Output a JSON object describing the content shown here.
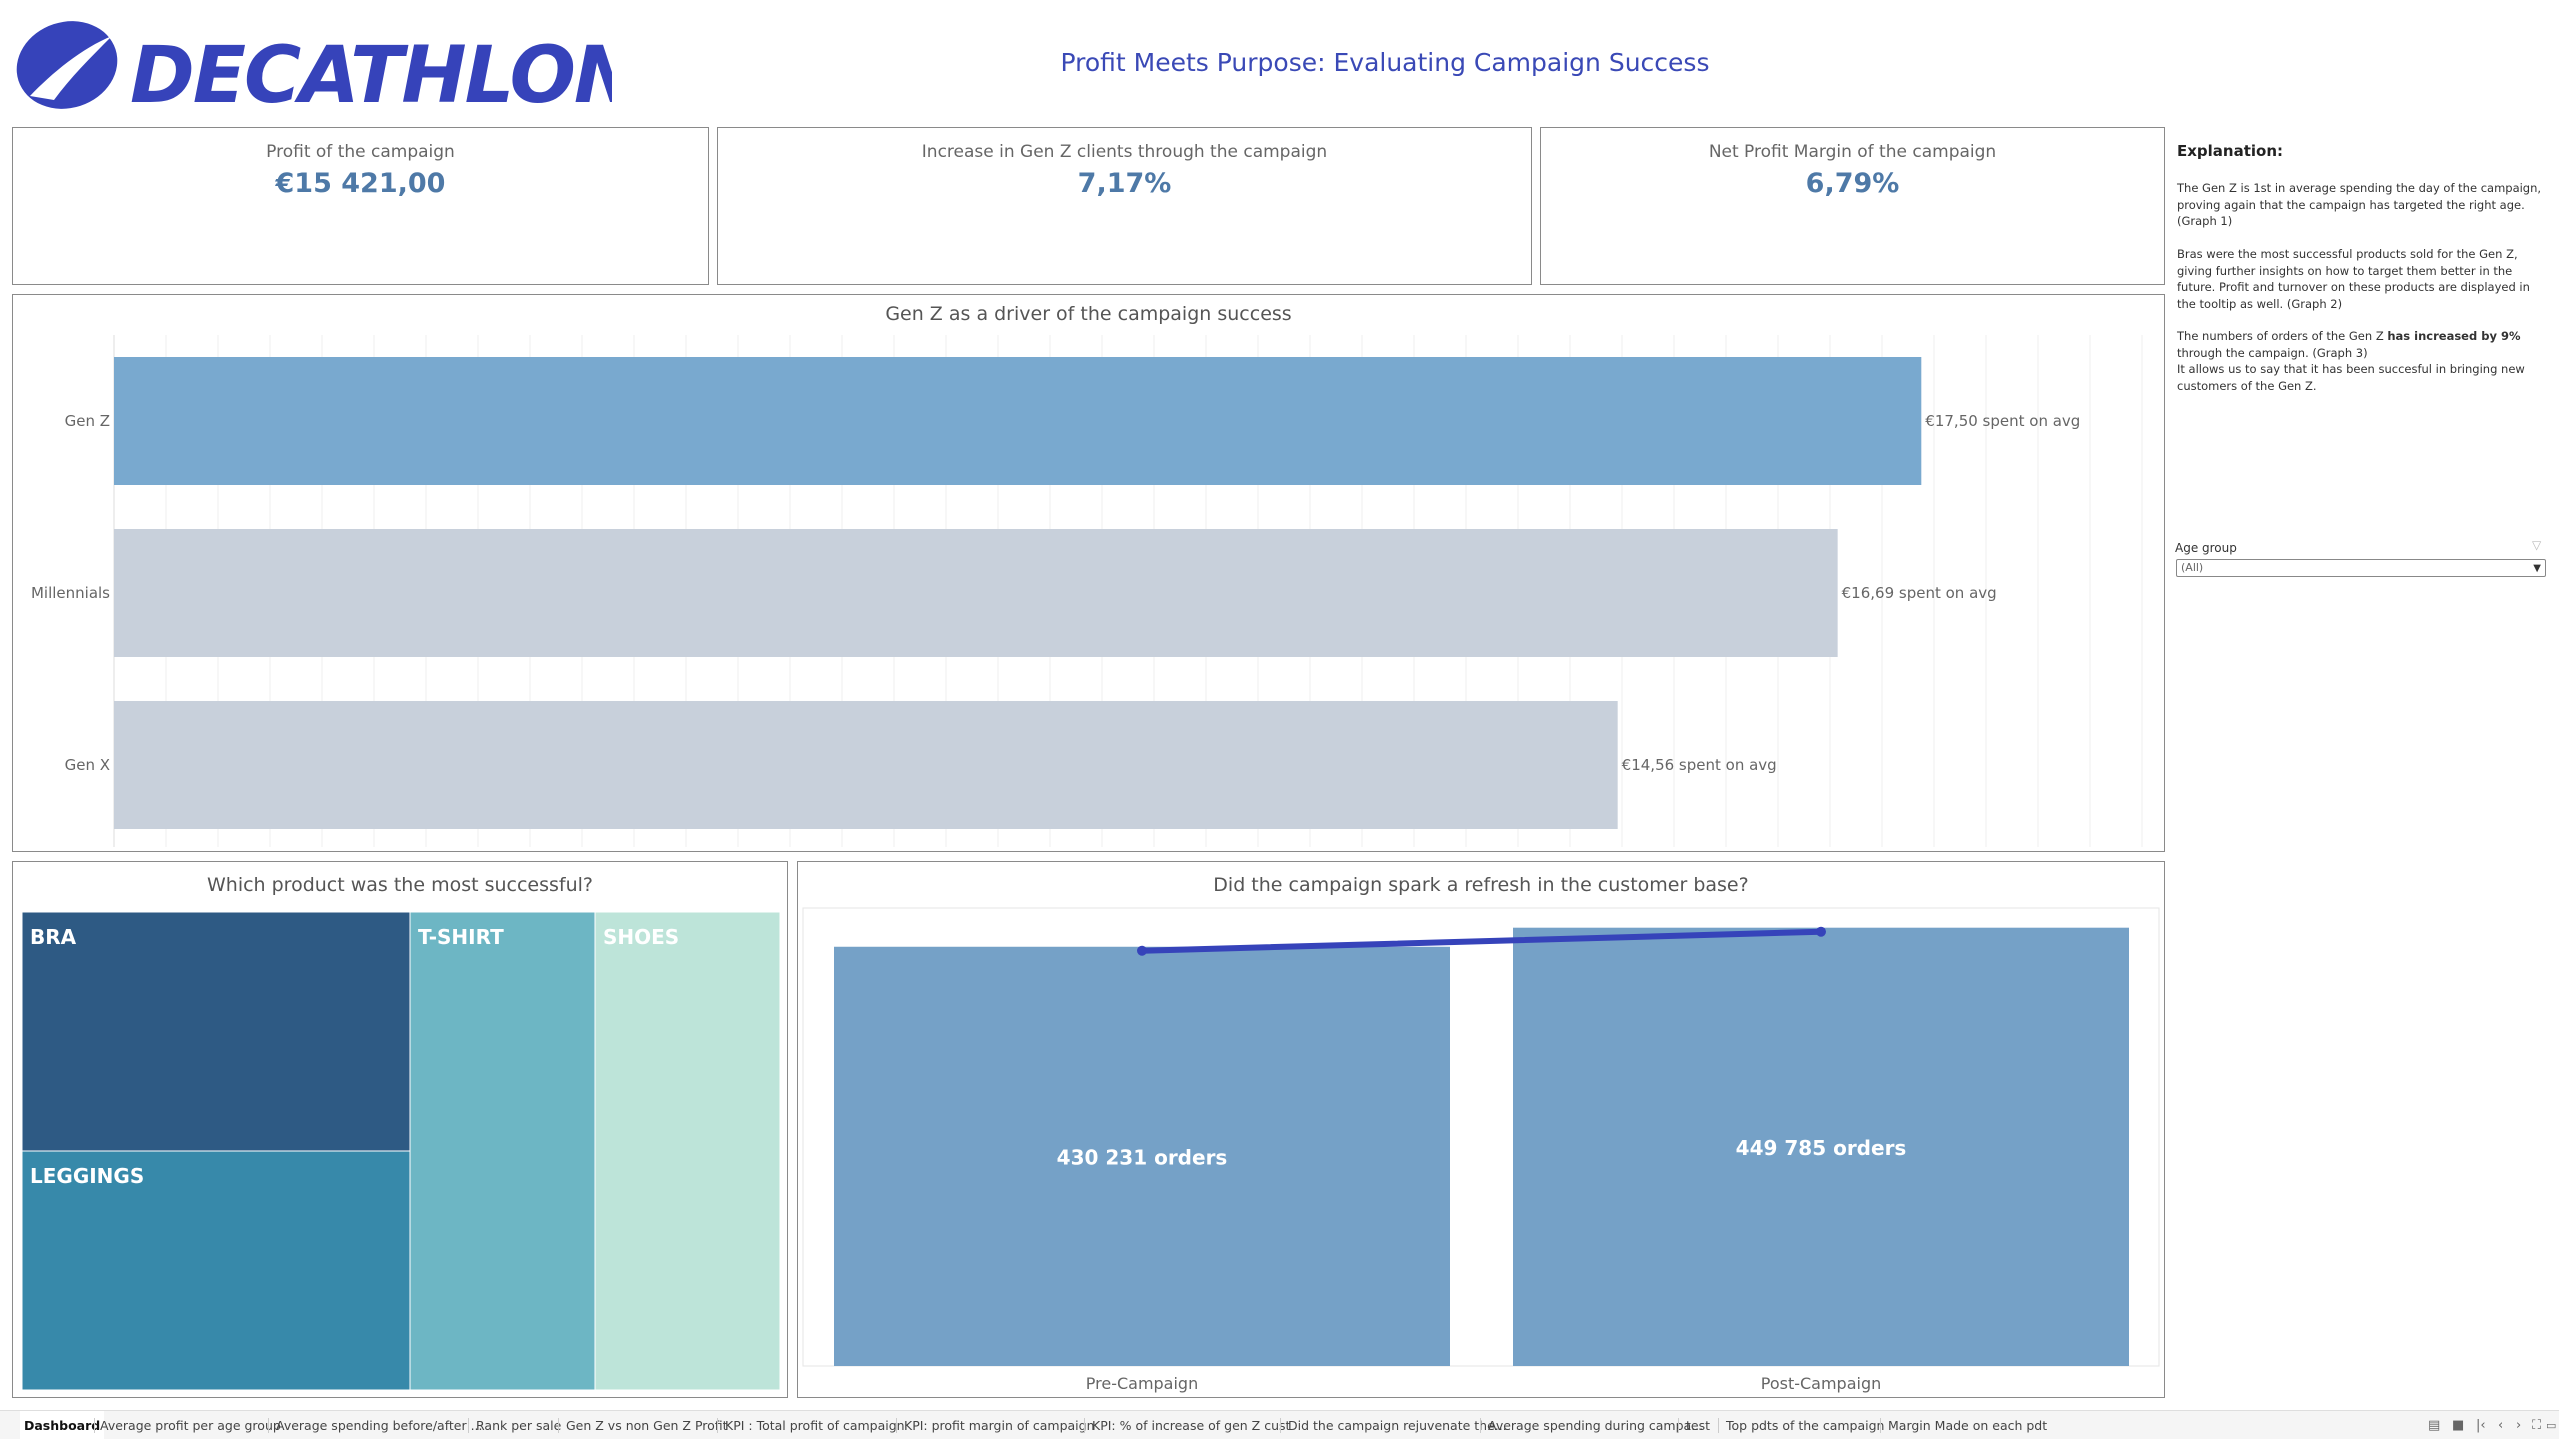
{
  "header": {
    "brand": "DECATHLON",
    "title": "Profit Meets Purpose: Evaluating Campaign Success"
  },
  "kpis": [
    {
      "label": "Profit of the campaign",
      "value": "€15 421,00"
    },
    {
      "label": "Increase in Gen Z clients through the campaign",
      "value": "7,17%"
    },
    {
      "label": "Net Profit Margin of the campaign",
      "value": "6,79%"
    }
  ],
  "colors": {
    "brand": "#3643BA",
    "highlight_bar": "#79a9cf",
    "muted_bar": "#c8d0db",
    "kpi_value": "#4e79a7",
    "orders_bar": "#75a1c7",
    "orders_line": "#3643BA"
  },
  "chart_data": [
    {
      "type": "bar",
      "orientation": "horizontal",
      "title": "Gen Z as a driver of the campaign success",
      "categories": [
        "Gen Z",
        "Millennials",
        "Gen X"
      ],
      "values": [
        17.5,
        16.69,
        14.56
      ],
      "labels": [
        "€17,50 spent on avg",
        "€16,69 spent on avg",
        "€14,56 spent on avg"
      ],
      "highlight": [
        "Gen Z"
      ],
      "xlim": [
        0,
        19.85
      ],
      "grid": true
    },
    {
      "type": "treemap",
      "title": "Which product was the most successful?",
      "categories": [
        "BRA",
        "LEGGINGS",
        "T-SHIRT",
        "SHOES"
      ],
      "colors": [
        "#2e5a84",
        "#3789aa",
        "#6db6c4",
        "#bde4d9"
      ],
      "label_colors": [
        "#ffffff",
        "#ffffff",
        "#ffffff",
        "#ffffff"
      ]
    },
    {
      "type": "bar",
      "title": "Did the campaign spark a refresh in the customer base?",
      "categories": [
        "Pre-Campaign",
        "Post-Campaign"
      ],
      "values": [
        430231,
        449785
      ],
      "labels": [
        "430 231 orders",
        "449 785 orders"
      ],
      "ylim": [
        0,
        470000
      ],
      "overlay_line": true
    }
  ],
  "explanation": {
    "title": "Explanation:",
    "p1": "The Gen Z is 1st in average spending the day of the campaign, proving again that the campaign has targeted the right age. (Graph 1)",
    "p2": "Bras were the most successful products sold for the Gen Z, giving further insights on how to target them better in the future. Profit and turnover on these products are displayed in the tooltip as well. (Graph 2)",
    "p3_pre": "The numbers of orders of the Gen Z ",
    "p3_bold": "has increased by 9%",
    "p3_post": " through the campaign. (Graph 3)",
    "p4": "It allows us to say that it has been succesful in bringing new customers of the Gen Z."
  },
  "filter": {
    "label": "Age group",
    "value": "(All)"
  },
  "tabs": [
    "Dashboard",
    "Average profit per age group",
    "Average spending before/after ...",
    "Rank per sale",
    "Gen Z vs non Gen Z Profit",
    "KPI : Total profit of campaign",
    "KPI: profit margin of campaign",
    "KPI: % of increase of gen Z cust",
    "Did the campaign rejuvenate the...",
    "Average spending during campa...",
    "test",
    "Top pdts of the campaign",
    "Margin Made on each pdt"
  ],
  "tab_controls": [
    "grid-view-icon",
    "filmstrip-view-icon",
    "first-sheet-icon",
    "previous-sheet-icon",
    "next-sheet-icon",
    "fullscreen-icon",
    "presentation-icon"
  ]
}
